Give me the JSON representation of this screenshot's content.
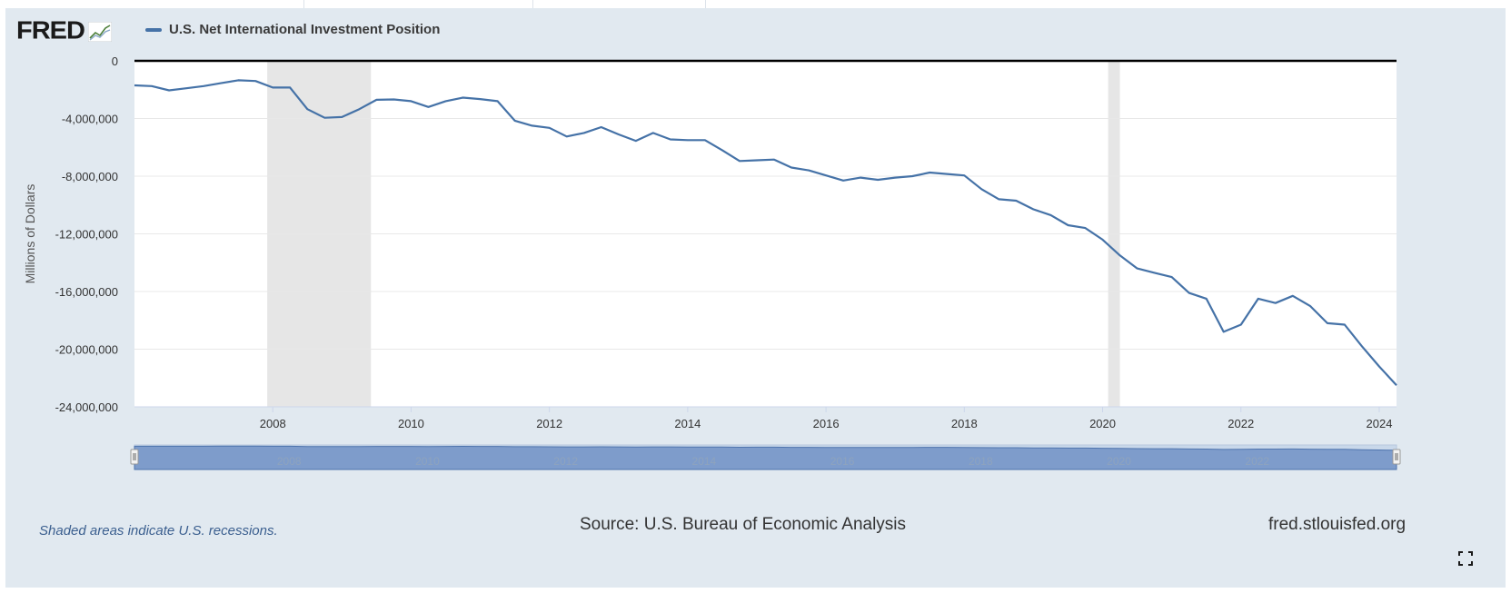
{
  "logo": {
    "text": "FRED"
  },
  "legend": {
    "label": "U.S. Net International Investment Position",
    "color": "#4572a7"
  },
  "note": "Shaded areas indicate U.S. recessions.",
  "source": "Source: U.S. Bureau of Economic Analysis",
  "site": "fred.stlouisfed.org",
  "icons": {
    "fullscreen": "fullscreen-icon",
    "logo_mark": "chart-trend-icon"
  },
  "chart_data": {
    "type": "line",
    "ylabel": "Millions of Dollars",
    "ylim": [
      -24000000,
      0
    ],
    "y_ticks": [
      0,
      -4000000,
      -8000000,
      -12000000,
      -16000000,
      -20000000,
      -24000000
    ],
    "y_tick_labels": [
      "0",
      "-4,000,000",
      "-8,000,000",
      "-12,000,000",
      "-16,000,000",
      "-20,000,000",
      "-24,000,000"
    ],
    "xlim": [
      2006.0,
      2024.25
    ],
    "x_ticks": [
      2008,
      2010,
      2012,
      2014,
      2016,
      2018,
      2020,
      2022,
      2024
    ],
    "x_tick_labels": [
      "2008",
      "2010",
      "2012",
      "2014",
      "2016",
      "2018",
      "2020",
      "2022",
      "2024"
    ],
    "grid": true,
    "recessions": [
      [
        2007.92,
        2009.42
      ],
      [
        2020.08,
        2020.25
      ]
    ],
    "navigator_labels": [
      "2008",
      "2010",
      "2012",
      "2014",
      "2016",
      "2018",
      "2020",
      "2022"
    ],
    "series": [
      {
        "name": "U.S. Net International Investment Position",
        "color": "#4572a7",
        "x": [
          2006.0,
          2006.25,
          2006.5,
          2006.75,
          2007.0,
          2007.25,
          2007.5,
          2007.75,
          2008.0,
          2008.25,
          2008.5,
          2008.75,
          2009.0,
          2009.25,
          2009.5,
          2009.75,
          2010.0,
          2010.25,
          2010.5,
          2010.75,
          2011.0,
          2011.25,
          2011.5,
          2011.75,
          2012.0,
          2012.25,
          2012.5,
          2012.75,
          2013.0,
          2013.25,
          2013.5,
          2013.75,
          2014.0,
          2014.25,
          2014.5,
          2014.75,
          2015.0,
          2015.25,
          2015.5,
          2015.75,
          2016.0,
          2016.25,
          2016.5,
          2016.75,
          2017.0,
          2017.25,
          2017.5,
          2017.75,
          2018.0,
          2018.25,
          2018.5,
          2018.75,
          2019.0,
          2019.25,
          2019.5,
          2019.75,
          2020.0,
          2020.25,
          2020.5,
          2020.75,
          2021.0,
          2021.25,
          2021.5,
          2021.75,
          2022.0,
          2022.25,
          2022.5,
          2022.75,
          2023.0,
          2023.25,
          2023.5,
          2023.75,
          2024.0,
          2024.25
        ],
        "values": [
          -1700000,
          -1750000,
          -2050000,
          -1900000,
          -1750000,
          -1550000,
          -1350000,
          -1400000,
          -1850000,
          -1850000,
          -3350000,
          -3950000,
          -3900000,
          -3350000,
          -2700000,
          -2680000,
          -2800000,
          -3200000,
          -2800000,
          -2550000,
          -2650000,
          -2800000,
          -4150000,
          -4500000,
          -4650000,
          -5250000,
          -5000000,
          -4600000,
          -5100000,
          -5550000,
          -5000000,
          -5450000,
          -5500000,
          -5500000,
          -6200000,
          -6950000,
          -6900000,
          -6850000,
          -7400000,
          -7600000,
          -7950000,
          -8300000,
          -8100000,
          -8250000,
          -8100000,
          -8000000,
          -7750000,
          -7850000,
          -7950000,
          -8900000,
          -9600000,
          -9700000,
          -10300000,
          -10700000,
          -11400000,
          -11600000,
          -12400000,
          -13500000,
          -14400000,
          -14700000,
          -15000000,
          -16100000,
          -16500000,
          -18800000,
          -18300000,
          -16500000,
          -16800000,
          -16300000,
          -17000000,
          -18200000,
          -18300000,
          -19800000,
          -21200000,
          -22500000
        ]
      }
    ]
  }
}
